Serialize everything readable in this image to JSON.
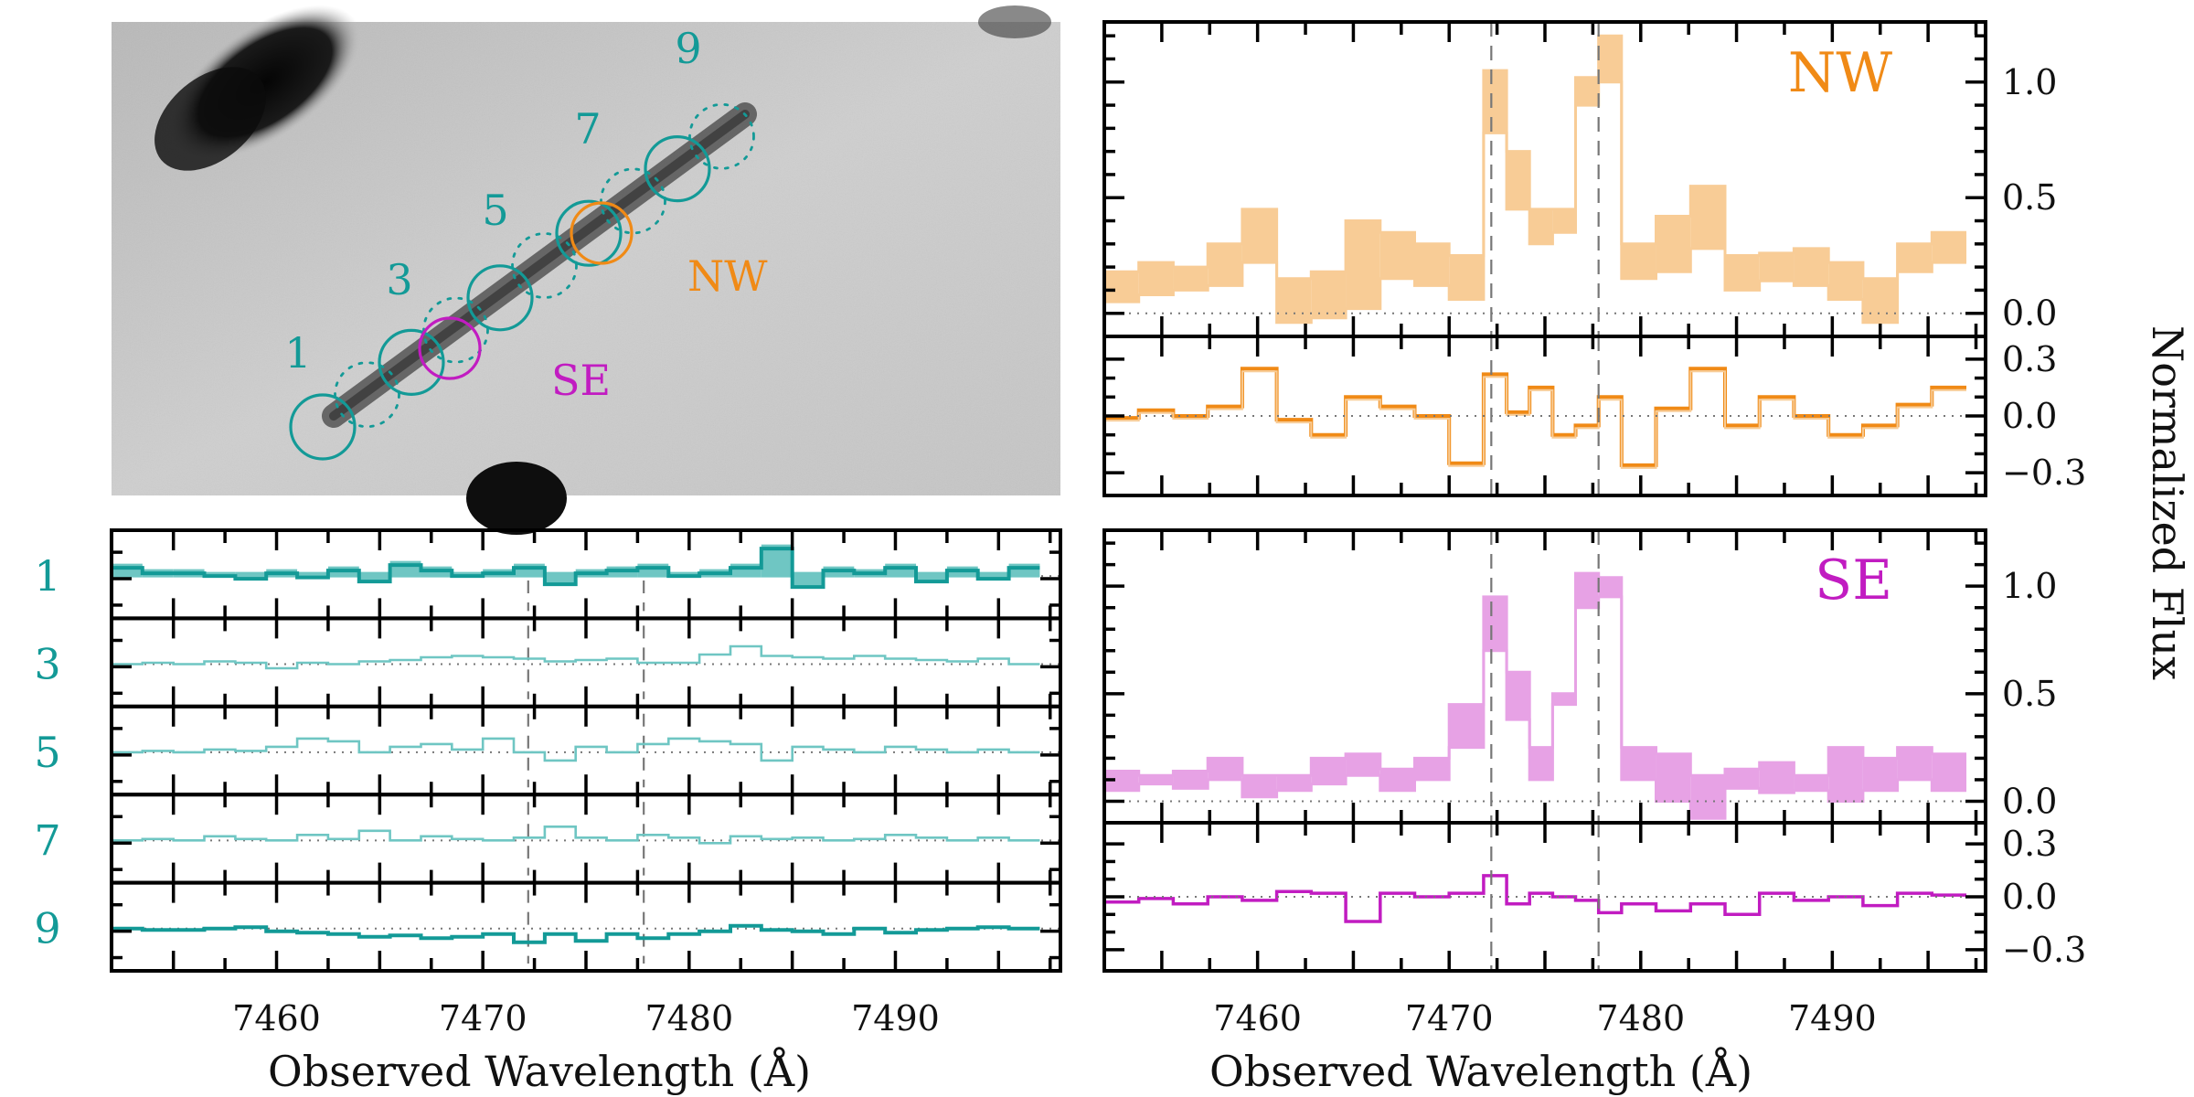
{
  "colors": {
    "teal": "#139a97",
    "teal_fill": "#6fc6c3",
    "orange": "#f08a16",
    "orange_fill": "#f8cc96",
    "magenta": "#c11cc1",
    "magenta_fill": "#e7a2e5",
    "axis": "#000000",
    "dashed": "#777777"
  },
  "image_panel": {
    "aperture_labels": [
      "1",
      "3",
      "5",
      "7",
      "9"
    ],
    "region_labels": {
      "nw": "NW",
      "se": "SE"
    }
  },
  "chart_data": [
    {
      "type": "area",
      "panel": "NW main",
      "label": "NW",
      "xlim": [
        7452,
        7498
      ],
      "ylim": [
        -0.1,
        1.26
      ],
      "yticks": [
        0.0,
        0.5,
        1.0
      ],
      "ytick_labels": [
        "0.0",
        "0.5",
        "1.0"
      ],
      "dashed_lines": [
        7472.2,
        7477.8
      ],
      "bin_edges": [
        7452,
        7453.8,
        7455.6,
        7457.4,
        7459.2,
        7461,
        7462.8,
        7464.6,
        7466.4,
        7468.2,
        7470,
        7471.8,
        7473,
        7474.2,
        7475.4,
        7476.6,
        7477.8,
        7479,
        7480.8,
        7482.6,
        7484.4,
        7486.2,
        7488,
        7489.8,
        7491.6,
        7493.4,
        7495.2,
        7497
      ],
      "lower": [
        0.05,
        0.08,
        0.1,
        0.12,
        0.22,
        -0.04,
        -0.02,
        0.02,
        0.15,
        0.12,
        0.06,
        0.78,
        0.45,
        0.3,
        0.35,
        0.9,
        1.0,
        0.15,
        0.18,
        0.28,
        0.1,
        0.14,
        0.12,
        0.06,
        -0.04,
        0.18,
        0.22
      ],
      "upper": [
        0.18,
        0.22,
        0.2,
        0.3,
        0.45,
        0.15,
        0.18,
        0.4,
        0.35,
        0.3,
        0.25,
        1.05,
        0.7,
        0.45,
        0.45,
        1.02,
        1.2,
        0.3,
        0.42,
        0.55,
        0.25,
        0.26,
        0.28,
        0.22,
        0.15,
        0.3,
        0.35
      ]
    },
    {
      "type": "line",
      "panel": "NW residual",
      "xlim": [
        7452,
        7498
      ],
      "ylim": [
        -0.42,
        0.42
      ],
      "yticks": [
        -0.3,
        0.0,
        0.3
      ],
      "ytick_labels": [
        "−0.3",
        "0.0",
        "0.3"
      ],
      "dashed_lines": [
        7472.2,
        7477.8
      ],
      "bin_edges": [
        7452,
        7453.8,
        7455.6,
        7457.4,
        7459.2,
        7461,
        7462.8,
        7464.6,
        7466.4,
        7468.2,
        7470,
        7471.8,
        7473,
        7474.2,
        7475.4,
        7476.6,
        7477.8,
        7479,
        7480.8,
        7482.6,
        7484.4,
        7486.2,
        7488,
        7489.8,
        7491.6,
        7493.4,
        7495.2,
        7497
      ],
      "values": [
        -0.01,
        0.03,
        0.0,
        0.05,
        0.25,
        -0.02,
        -0.1,
        0.1,
        0.05,
        0.0,
        -0.25,
        0.22,
        0.02,
        0.15,
        -0.1,
        -0.05,
        0.1,
        -0.26,
        0.04,
        0.25,
        -0.05,
        0.1,
        0.0,
        -0.1,
        -0.05,
        0.06,
        0.15
      ]
    },
    {
      "type": "area",
      "panel": "SE main",
      "label": "SE",
      "xlim": [
        7452,
        7498
      ],
      "ylim": [
        -0.1,
        1.26
      ],
      "yticks": [
        0.0,
        0.5,
        1.0
      ],
      "ytick_labels": [
        "0.0",
        "0.5",
        "1.0"
      ],
      "dashed_lines": [
        7472.2,
        7477.8
      ],
      "bin_edges": [
        7452,
        7453.8,
        7455.6,
        7457.4,
        7459.2,
        7461,
        7462.8,
        7464.6,
        7466.4,
        7468.2,
        7470,
        7471.8,
        7473,
        7474.2,
        7475.4,
        7476.6,
        7477.8,
        7479,
        7480.8,
        7482.6,
        7484.4,
        7486.2,
        7488,
        7489.8,
        7491.6,
        7493.4,
        7495.2,
        7497
      ],
      "lower": [
        0.05,
        0.08,
        0.06,
        0.1,
        0.02,
        0.05,
        0.08,
        0.12,
        0.05,
        0.1,
        0.25,
        0.7,
        0.38,
        0.1,
        0.45,
        0.9,
        0.95,
        0.1,
        0.0,
        -0.08,
        0.06,
        0.04,
        0.05,
        0.0,
        0.05,
        0.1,
        0.05
      ],
      "upper": [
        0.14,
        0.12,
        0.14,
        0.2,
        0.12,
        0.12,
        0.2,
        0.22,
        0.15,
        0.2,
        0.45,
        0.95,
        0.6,
        0.25,
        0.5,
        1.06,
        1.04,
        0.25,
        0.22,
        0.12,
        0.15,
        0.18,
        0.12,
        0.25,
        0.2,
        0.25,
        0.22
      ]
    },
    {
      "type": "line",
      "panel": "SE residual",
      "xlim": [
        7452,
        7498
      ],
      "ylim": [
        -0.42,
        0.42
      ],
      "yticks": [
        -0.3,
        0.0,
        0.3
      ],
      "ytick_labels": [
        "−0.3",
        "0.0",
        "0.3"
      ],
      "dashed_lines": [
        7472.2,
        7477.8
      ],
      "bin_edges": [
        7452,
        7453.8,
        7455.6,
        7457.4,
        7459.2,
        7461,
        7462.8,
        7464.6,
        7466.4,
        7468.2,
        7470,
        7471.8,
        7473,
        7474.2,
        7475.4,
        7476.6,
        7477.8,
        7479,
        7480.8,
        7482.6,
        7484.4,
        7486.2,
        7488,
        7489.8,
        7491.6,
        7493.4,
        7495.2,
        7497
      ],
      "values": [
        -0.03,
        -0.01,
        -0.04,
        0.0,
        -0.02,
        0.03,
        0.02,
        -0.14,
        0.02,
        0.0,
        0.02,
        0.12,
        -0.04,
        0.02,
        0.0,
        -0.02,
        -0.09,
        -0.04,
        -0.08,
        -0.04,
        -0.1,
        0.02,
        -0.02,
        0.0,
        -0.05,
        0.02,
        0.01
      ]
    },
    {
      "type": "line",
      "panel": "aperture spectra",
      "xlim": [
        7452,
        7498
      ],
      "xticks": [
        7460,
        7470,
        7480,
        7490
      ],
      "xtick_labels": [
        "7460",
        "7470",
        "7480",
        "7490"
      ],
      "xlabel": "Observed Wavelength (Å)",
      "dashed_lines": [
        7472.2,
        7477.8
      ],
      "rows": [
        "1",
        "3",
        "5",
        "7",
        "9"
      ],
      "bin_edges": [
        7452,
        7453.5,
        7455,
        7456.5,
        7458,
        7459.5,
        7461,
        7462.5,
        7464,
        7465.5,
        7467,
        7468.5,
        7470,
        7471.5,
        7473,
        7474.5,
        7476,
        7477.5,
        7479,
        7480.5,
        7482,
        7483.5,
        7485,
        7486.5,
        7488,
        7489.5,
        7491,
        7492.5,
        7494,
        7495.5,
        7497
      ],
      "series": [
        {
          "values": [
            0.3,
            0.1,
            0.1,
            0.0,
            -0.1,
            0.1,
            -0.05,
            0.2,
            -0.2,
            0.4,
            0.2,
            0.0,
            0.1,
            0.3,
            -0.3,
            0.1,
            0.2,
            0.3,
            0.0,
            0.1,
            0.3,
            1.0,
            -0.4,
            0.2,
            0.1,
            0.3,
            -0.2,
            0.2,
            -0.1,
            0.3
          ]
        },
        {
          "values": [
            0.0,
            0.05,
            0.0,
            0.1,
            0.05,
            -0.15,
            0.05,
            0.0,
            0.1,
            0.15,
            0.25,
            0.3,
            0.25,
            0.2,
            0.1,
            0.15,
            0.2,
            0.05,
            0.05,
            0.35,
            0.65,
            0.3,
            0.25,
            0.2,
            0.3,
            0.2,
            0.15,
            0.1,
            0.2,
            0.0
          ]
        },
        {
          "values": [
            0.0,
            0.05,
            0.0,
            0.1,
            0.05,
            0.2,
            0.5,
            0.4,
            0.0,
            0.2,
            0.3,
            0.1,
            0.5,
            0.0,
            -0.3,
            0.2,
            0.0,
            0.3,
            0.5,
            0.4,
            0.3,
            -0.3,
            0.2,
            0.1,
            0.0,
            0.2,
            0.1,
            0.0,
            0.1,
            0.0
          ]
        },
        {
          "values": [
            0.0,
            0.05,
            0.0,
            0.15,
            0.05,
            0.0,
            0.2,
            0.05,
            0.35,
            0.0,
            0.15,
            0.05,
            0.0,
            0.1,
            0.5,
            0.1,
            0.0,
            0.2,
            0.1,
            -0.1,
            0.15,
            0.05,
            0.1,
            0.0,
            0.05,
            0.2,
            0.1,
            0.0,
            0.1,
            0.0
          ]
        },
        {
          "values": [
            0.0,
            -0.05,
            -0.05,
            0.0,
            0.05,
            -0.1,
            -0.15,
            -0.2,
            -0.3,
            -0.25,
            -0.35,
            -0.3,
            -0.2,
            -0.5,
            -0.2,
            -0.45,
            -0.2,
            -0.35,
            -0.2,
            -0.1,
            0.1,
            -0.05,
            -0.1,
            -0.2,
            0.0,
            -0.15,
            -0.05,
            0.0,
            0.05,
            0.0
          ]
        }
      ]
    }
  ],
  "axes_text": {
    "xlabel_left": "Observed Wavelength (Å)",
    "xlabel_right": "Observed Wavelength (Å)",
    "ylabel_right": "Normalized Flux",
    "xtick_labels": [
      "7460",
      "7470",
      "7480",
      "7490"
    ]
  }
}
